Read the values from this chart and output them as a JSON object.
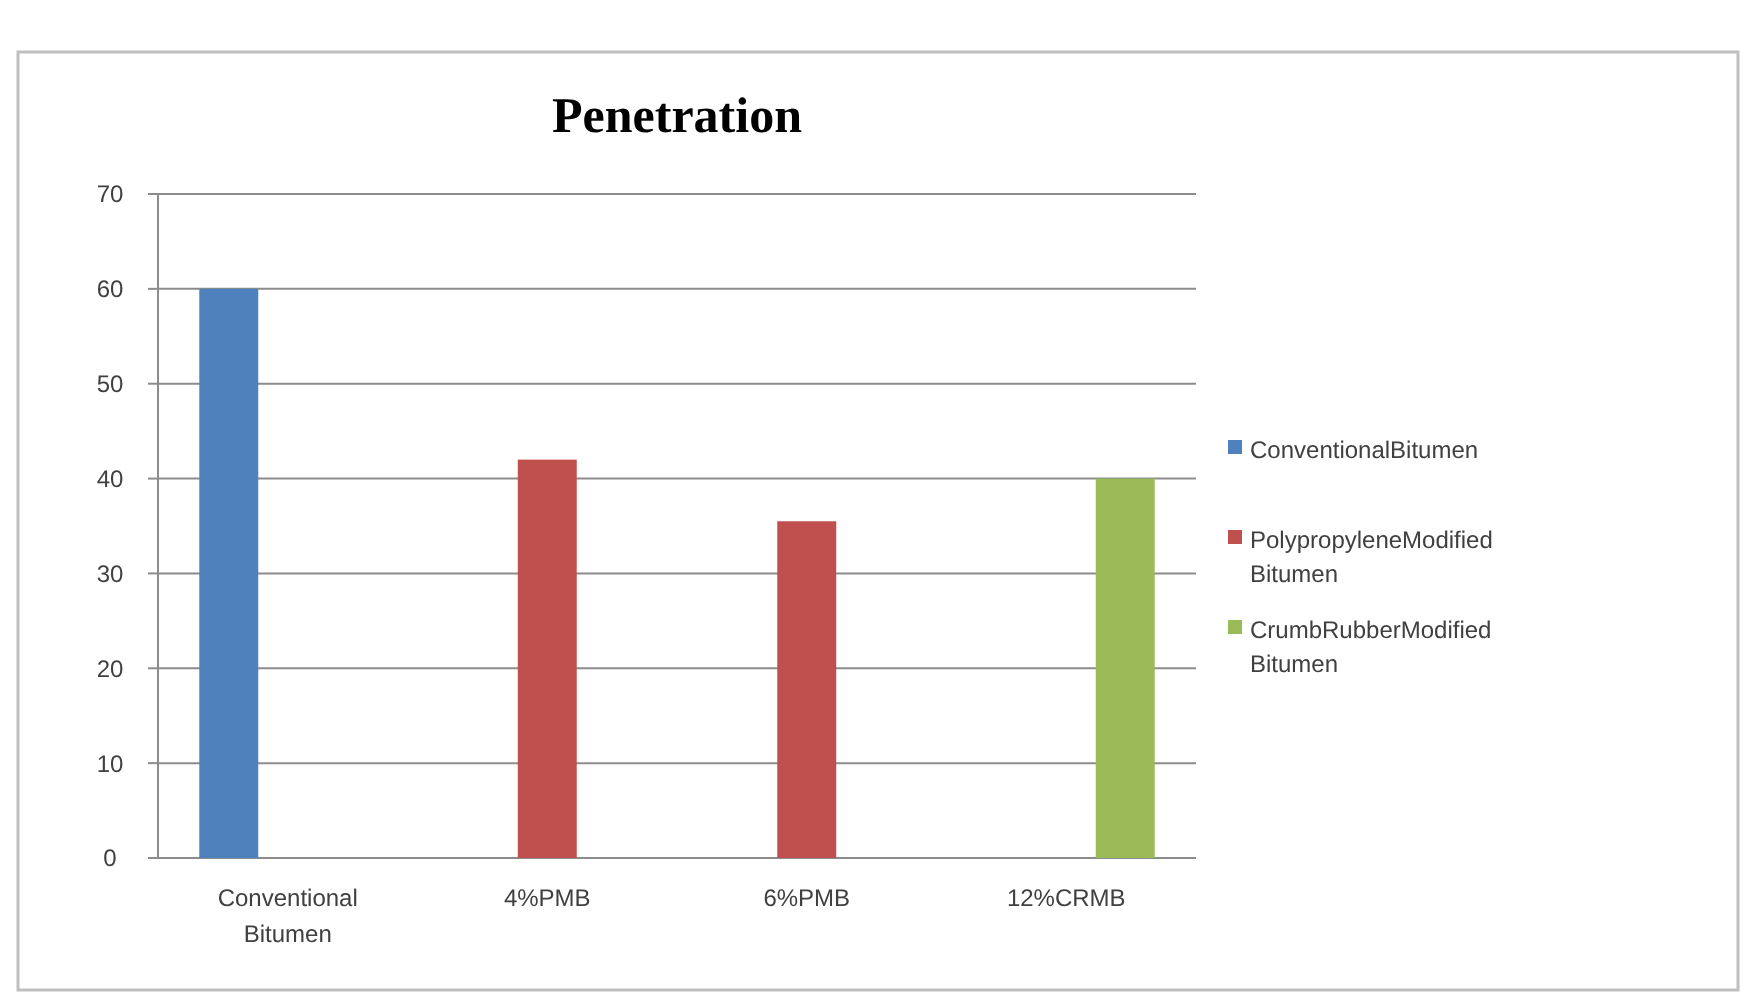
{
  "chart_data": {
    "type": "bar",
    "title": "Penetration",
    "categories": [
      "Conventional Bitumen",
      "4%PMB",
      "6%PMB",
      "12%CRMB"
    ],
    "series": [
      {
        "name": "ConventionalBitumen",
        "color": "#4f81bd",
        "values": [
          60,
          null,
          null,
          null
        ]
      },
      {
        "name": "PolypropyleneModified Bitumen",
        "color": "#c0504d",
        "values": [
          null,
          42,
          35.5,
          null
        ]
      },
      {
        "name": "CrumbRubberModified Bitumen",
        "color": "#9bbb59",
        "values": [
          null,
          null,
          null,
          40
        ]
      }
    ],
    "ylim": [
      0,
      70
    ],
    "yticks": [
      0,
      10,
      20,
      30,
      40,
      50,
      60,
      70
    ],
    "grid": "y",
    "legend": "right"
  }
}
